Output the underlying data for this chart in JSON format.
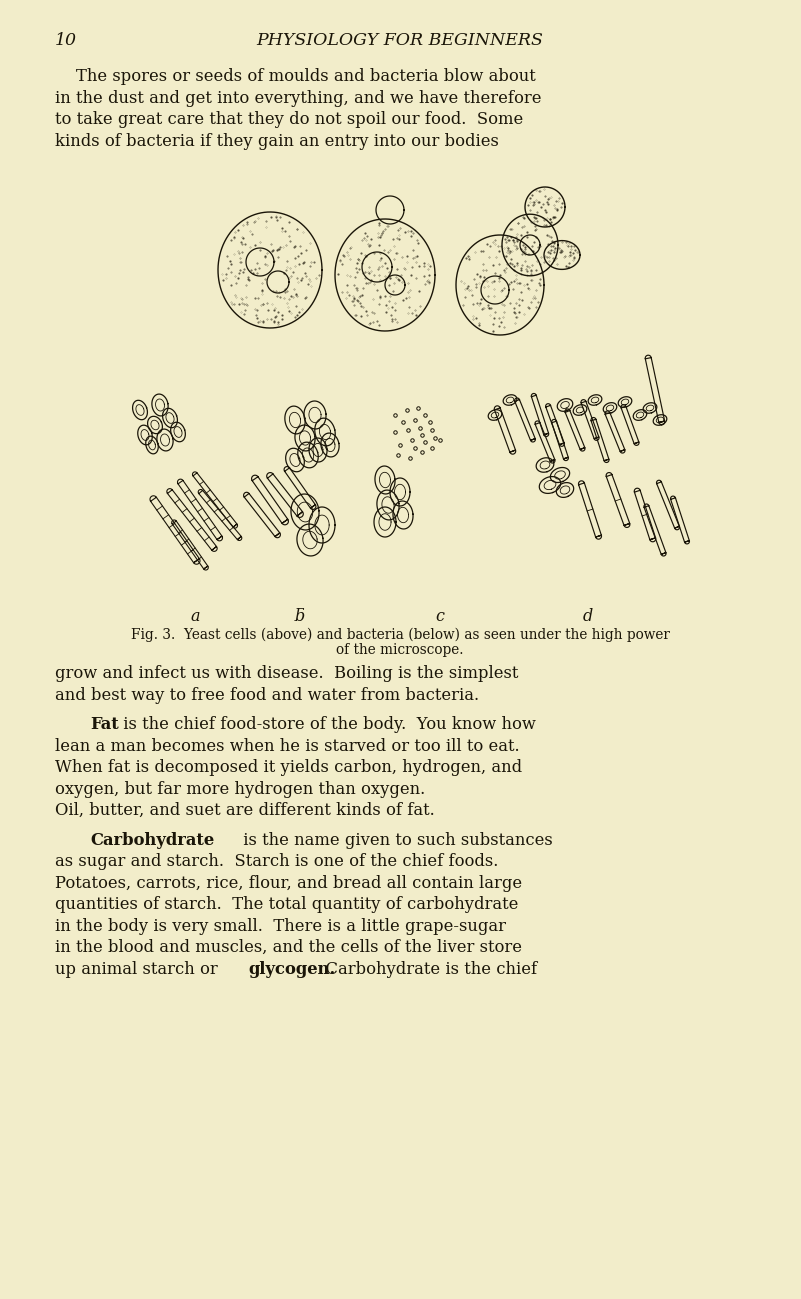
{
  "background_color": "#f2edca",
  "page_number": "10",
  "header_title": "PHYSIOLOGY FOR BEGINNERS",
  "header_fontsize": 12.5,
  "body_fontsize": 11.8,
  "caption_fontsize": 9.8,
  "label_fontsize": 11.5,
  "text_color": "#1a1508",
  "ink_color": "#1a1508",
  "labels": [
    "a",
    "ƃ",
    "c",
    "d"
  ],
  "caption_line1": "Fig. 3.  Yeast cells (above) and bacteria (below) as seen under the high power",
  "caption_line2": "of the microscope."
}
